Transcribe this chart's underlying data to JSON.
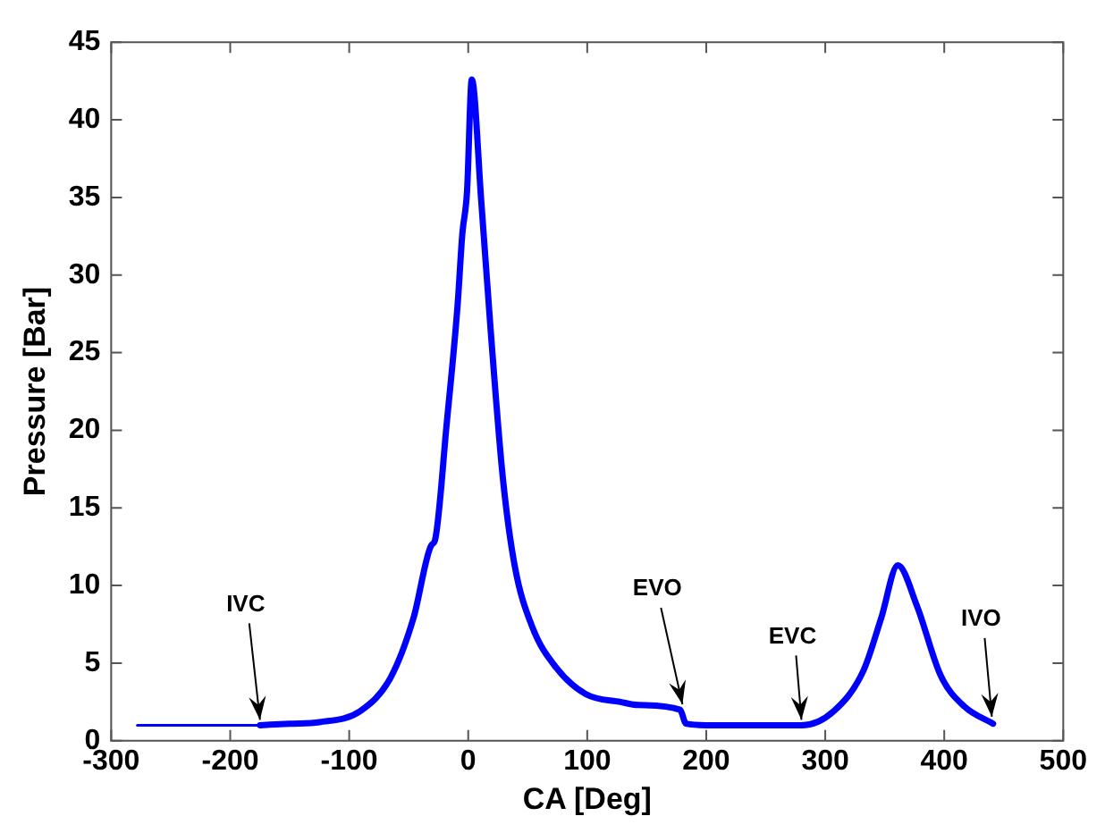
{
  "chart_data": {
    "type": "line",
    "xlabel": "CA [Deg]",
    "ylabel": "Pressure [Bar]",
    "xlim": [
      -300,
      500
    ],
    "xticks": [
      -300,
      -200,
      -100,
      0,
      100,
      200,
      300,
      400,
      500
    ],
    "ylim": [
      0,
      45
    ],
    "yticks": [
      0,
      5,
      10,
      15,
      20,
      25,
      30,
      35,
      40,
      45
    ],
    "grid": false,
    "legend": false,
    "marker": "none",
    "line_style": "solid",
    "series": [
      {
        "color": "#0000ff",
        "x": [
          -278,
          -175
        ],
        "values": [
          1,
          1
        ]
      },
      {
        "color": "#0000ff",
        "x": [
          -175,
          -150,
          -125,
          -91,
          -65,
          -46,
          -31,
          -28,
          -18,
          -9,
          -5,
          -1,
          3,
          11,
          19,
          29,
          39,
          54,
          74,
          99,
          128,
          143,
          178,
          183,
          200,
          250,
          280,
          307,
          332,
          347,
          361,
          377,
          397,
          417,
          441
        ],
        "values": [
          1,
          1.1,
          1.2,
          1.9,
          4.1,
          7.9,
          12.6,
          12.9,
          20.5,
          28,
          32.6,
          35.4,
          42.6,
          34.7,
          26.3,
          17,
          11.3,
          7.3,
          4.7,
          3,
          2.5,
          2.3,
          2,
          1.1,
          1,
          1,
          1,
          1.9,
          4.5,
          7.9,
          11.3,
          8.7,
          4.2,
          2.2,
          1.1
        ]
      }
    ],
    "annotations": [
      {
        "text": "IVC",
        "x": -175,
        "y": 1
      },
      {
        "text": "EVO",
        "x": 180,
        "y": 2
      },
      {
        "text": "EVC",
        "x": 280,
        "y": 1
      },
      {
        "text": "IVO",
        "x": 440,
        "y": 1.2
      }
    ]
  }
}
